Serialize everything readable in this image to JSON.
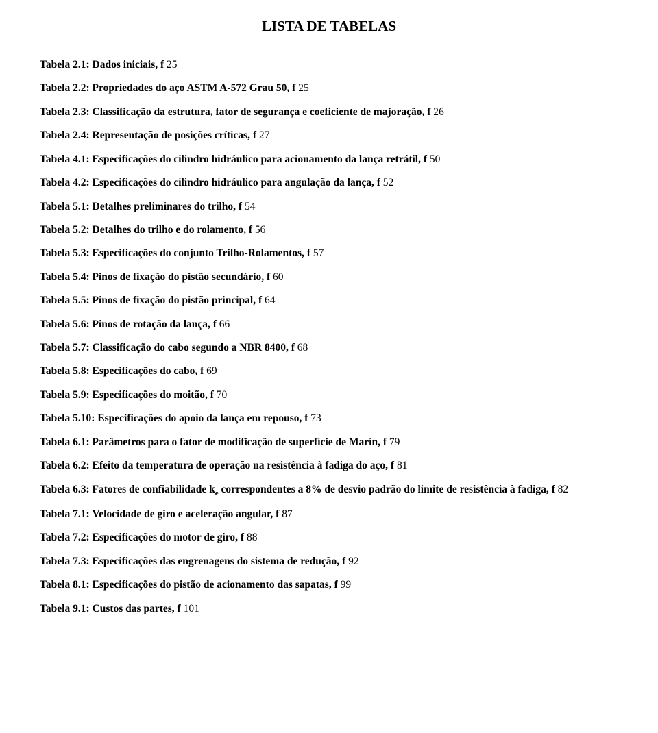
{
  "title": "LISTA DE TABELAS",
  "entries": [
    {
      "prefix": "Tabela 2.1:",
      "desc": "Dados iniciais, f",
      "page": "25"
    },
    {
      "prefix": "Tabela 2.2:",
      "desc": "Propriedades do aço ASTM A-572 Grau 50, f",
      "page": "25"
    },
    {
      "prefix": "Tabela 2.3:",
      "desc": "Classificação da estrutura, fator de segurança e coeficiente de majoração, f",
      "page": "26"
    },
    {
      "prefix": "Tabela 2.4:",
      "desc": "Representação de posições críticas, f",
      "page": "27"
    },
    {
      "prefix": "Tabela 4.1:",
      "desc": "Especificações do cilindro hidráulico para acionamento da lança retrátil, f",
      "page": "50"
    },
    {
      "prefix": "Tabela 4.2:",
      "desc": "Especificações do cilindro hidráulico para angulação da lança, f",
      "page": "52"
    },
    {
      "prefix": "Tabela 5.1:",
      "desc": "Detalhes preliminares do trilho, f",
      "page": "54"
    },
    {
      "prefix": "Tabela 5.2:",
      "desc": "Detalhes do trilho e do rolamento, f",
      "page": "56"
    },
    {
      "prefix": "Tabela 5.3:",
      "desc": "Especificações do conjunto Trilho-Rolamentos, f",
      "page": "57"
    },
    {
      "prefix": "Tabela 5.4:",
      "desc": "Pinos de fixação do pistão secundário, f",
      "page": "60"
    },
    {
      "prefix": "Tabela 5.5:",
      "desc": "Pinos de fixação do pistão principal, f",
      "page": "64"
    },
    {
      "prefix": "Tabela 5.6:",
      "desc": "Pinos de rotação da lança, f",
      "page": "66"
    },
    {
      "prefix": "Tabela 5.7:",
      "desc": "Classificação do cabo segundo a NBR 8400, f",
      "page": "68"
    },
    {
      "prefix": "Tabela 5.8:",
      "desc": "Especificações do cabo, f",
      "page": "69"
    },
    {
      "prefix": "Tabela 5.9:",
      "desc": "Especificações do moitão, f",
      "page": "70"
    },
    {
      "prefix": "Tabela 5.10:",
      "desc": "Especificações do apoio da lança em repouso, f",
      "page": "73"
    },
    {
      "prefix": "Tabela 6.1:",
      "desc": "Parâmetros para o fator de modificação de superfície de Marín, f",
      "page": "79"
    },
    {
      "prefix": "Tabela 6.2:",
      "desc": "Efeito da temperatura de operação na resistência à fadiga do aço, f",
      "page": "81"
    }
  ],
  "entry_63": {
    "prefix": "Tabela 6.3:",
    "part1": "Fatores de confiabilidade k",
    "sub": "e",
    "part2": " correspondentes a 8% de desvio padrão do limite de resistência à fadiga, f",
    "page": "82"
  },
  "entries2": [
    {
      "prefix": "Tabela 7.1:",
      "desc": "Velocidade de giro e aceleração angular, f",
      "page": "87"
    },
    {
      "prefix": "Tabela 7.2:",
      "desc": "Especificações do motor de giro, f",
      "page": "88"
    },
    {
      "prefix": "Tabela 7.3:",
      "desc": "Especificações das engrenagens do sistema de redução, f",
      "page": "92"
    },
    {
      "prefix": "Tabela 8.1:",
      "desc": "Especificações do pistão de acionamento das sapatas, f",
      "page": "99"
    },
    {
      "prefix": "Tabela 9.1:",
      "desc": "Custos das partes, f",
      "page": "101"
    }
  ]
}
